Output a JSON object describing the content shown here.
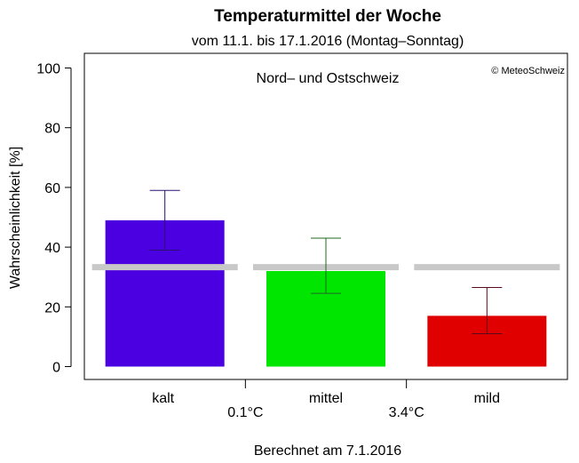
{
  "chart_data": {
    "type": "bar",
    "title": "Temperaturmittel der Woche",
    "subtitle": "vom 11.1. bis 17.1.2016 (Montag–Sonntag)",
    "region_label": "Nord– und Ostschweiz",
    "copyright": "© MeteoSchweiz",
    "ylabel": "Wahrscheinlichkeit [%]",
    "footer": "Berechnet am 7.1.2016",
    "ylim": [
      0,
      100
    ],
    "yticks": [
      "0",
      "20",
      "40",
      "60",
      "80",
      "100"
    ],
    "categories": [
      "kalt",
      "mittel",
      "mild"
    ],
    "values": [
      49,
      32,
      17
    ],
    "error_low": [
      39,
      24.5,
      11
    ],
    "error_high": [
      59,
      43,
      26.5
    ],
    "reference_value": 33.3,
    "thresholds": [
      "0.1°C",
      "3.4°C"
    ],
    "colors": [
      "#4a00e0",
      "#00e600",
      "#e00000"
    ],
    "errorbar_colors": [
      "#2a1070",
      "#1f6a1f",
      "#5a0a1a"
    ],
    "reference_color": "#c8c8c8"
  }
}
